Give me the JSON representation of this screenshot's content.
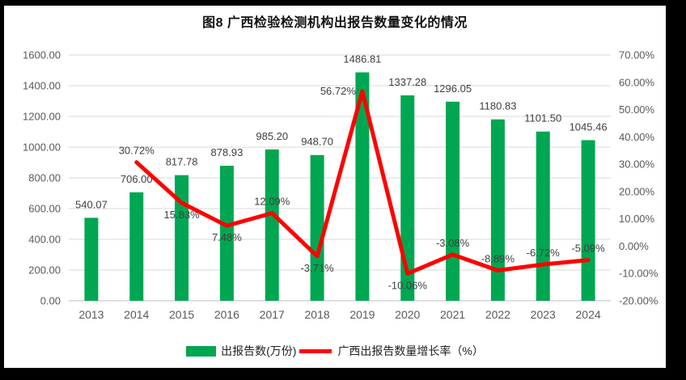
{
  "title": "图8  广西检验检测机构出报告数量变化的情况",
  "legend": [
    {
      "type": "bar",
      "label": "出报告数(万份)",
      "color": "#00A651"
    },
    {
      "type": "line",
      "label": "广西出报告数量增长率（%）",
      "color": "#FF0000"
    }
  ],
  "colors": {
    "bar_green": "#00A651",
    "line_red": "#FF0000",
    "gridline": "#D9D9D9",
    "baseline": "#BFBFBF",
    "axis_text": "#595959",
    "label_text": "#3f3f3f",
    "frame": "#000000",
    "window_background": "#FFFFFF"
  },
  "chart_data": {
    "type": "bar",
    "subtype": "combo bar + line, dual axis",
    "title": "图8  广西检验检测机构出报告数量变化的情况",
    "categories": [
      "2013",
      "2014",
      "2015",
      "2016",
      "2017",
      "2018",
      "2019",
      "2020",
      "2021",
      "2022",
      "2023",
      "2024"
    ],
    "series": [
      {
        "name": "出报告数(万份)",
        "type": "bar",
        "axis": "left",
        "color": "#00A651",
        "values": [
          540.07,
          706.0,
          817.78,
          878.93,
          985.2,
          948.7,
          1486.81,
          1337.28,
          1296.05,
          1180.83,
          1101.5,
          1045.46
        ],
        "labels": [
          "540.07",
          "706.00",
          "817.78",
          "878.93",
          "985.20",
          "948.70",
          "1486.81",
          "1337.28",
          "1296.05",
          "1180.83",
          "1101.50",
          "1045.46"
        ]
      },
      {
        "name": "广西出报告数量增长率（%）",
        "type": "line",
        "axis": "right",
        "color": "#FF0000",
        "values": [
          null,
          30.72,
          15.83,
          7.48,
          12.09,
          -3.71,
          56.72,
          -10.06,
          -3.08,
          -8.89,
          -6.72,
          -5.09
        ],
        "labels": [
          null,
          "30.72%",
          "15.83%",
          "7.48%",
          "12.09%",
          "-3.71%",
          "56.72%",
          "-10.06%",
          "-3.08%",
          "-8.89%",
          "-6.72%",
          "-5.09%"
        ],
        "label_positions": [
          null,
          "above",
          "below",
          "below",
          "above",
          "below",
          "left",
          "below",
          "above",
          "above",
          "above",
          "above"
        ]
      }
    ],
    "left_axis": {
      "min": 0,
      "max": 1600,
      "step": 200,
      "ticks": [
        "0.00",
        "200.00",
        "400.00",
        "600.00",
        "800.00",
        "1000.00",
        "1200.00",
        "1400.00",
        "1600.00"
      ]
    },
    "right_axis": {
      "min": -20,
      "max": 70,
      "step": 10,
      "ticks": [
        "-20.00%",
        "-10.00%",
        "0.00%",
        "10.00%",
        "20.00%",
        "30.00%",
        "40.00%",
        "50.00%",
        "60.00%",
        "70.00%"
      ]
    },
    "grid": "horizontal gridlines aligned to left axis",
    "legend_position": "bottom"
  }
}
